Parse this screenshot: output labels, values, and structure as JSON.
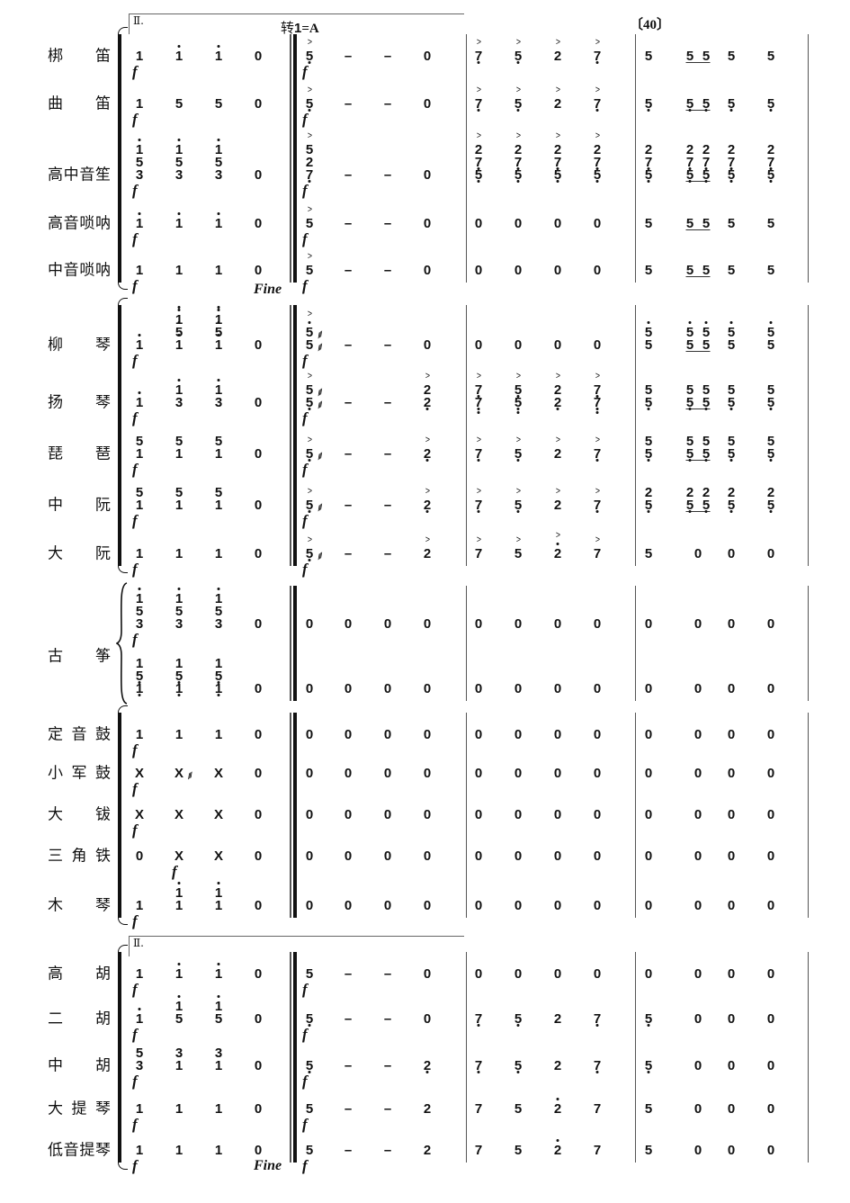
{
  "score": {
    "volta_label": "Ⅱ.",
    "key_change": {
      "prefix": "转",
      "do": "1",
      "equals": "=",
      "key": "A"
    },
    "rehearsal_mark": "〔40〕",
    "fine": "Fine",
    "notation_legend": {
      "'": "high octave dot",
      ",": "low octave dot",
      ">": "accent",
      "~": "tremolo",
      "/": "chord (top to bottom)",
      " ": "underlined eighth-note pair",
      "-": "extension dash"
    },
    "groups": [
      {
        "bracket": "bracket",
        "staves": [
          {
            "label": "梆 笛",
            "measures": [
              [
                "1",
                "1'",
                "1'",
                "0"
              ],
              [
                ">5,",
                "-",
                "-",
                "0"
              ],
              [
                ">7,",
                ">5,",
                ">2",
                ">7,"
              ],
              [
                "5",
                "5 5",
                "5",
                "5"
              ]
            ],
            "dynamics": [
              {
                "mark": "f",
                "measure": 1,
                "beat": 1
              },
              {
                "mark": "f",
                "measure": 2,
                "beat": 1
              }
            ]
          },
          {
            "label": "曲 笛",
            "measures": [
              [
                "1",
                "5",
                "5",
                "0"
              ],
              [
                ">5,",
                "-",
                "-",
                "0"
              ],
              [
                ">7,",
                ">5,",
                ">2",
                ">7,"
              ],
              [
                "5,",
                "5, 5,",
                "5,",
                "5,"
              ]
            ],
            "dynamics": [
              {
                "mark": "f",
                "measure": 1,
                "beat": 1
              },
              {
                "mark": "f",
                "measure": 2,
                "beat": 1
              }
            ]
          },
          {
            "label": "高中音笙",
            "measures": [
              [
                "1'/5/3",
                "1'/5/3",
                "1'/5/3",
                "0"
              ],
              [
                ">5/2/7,",
                "-",
                "-",
                "0"
              ],
              [
                ">2/7,/5,",
                ">2/7,/5,",
                ">2/7,/5,",
                ">2/7,/5,"
              ],
              [
                "2/7,/5,",
                "2/7,/5, 2/7,/5,",
                "2/7,/5,",
                "2/7,/5,"
              ]
            ],
            "dynamics": [
              {
                "mark": "f",
                "measure": 1,
                "beat": 1
              },
              {
                "mark": "f",
                "measure": 2,
                "beat": 1
              }
            ]
          },
          {
            "label": "高音唢呐",
            "measures": [
              [
                "1'",
                "1'",
                "1'",
                "0"
              ],
              [
                ">5",
                "-",
                "-",
                "0"
              ],
              [
                "0",
                "0",
                "0",
                "0"
              ],
              [
                "5",
                "5 5",
                "5",
                "5"
              ]
            ],
            "dynamics": [
              {
                "mark": "f",
                "measure": 1,
                "beat": 1
              },
              {
                "mark": "f",
                "measure": 2,
                "beat": 1
              }
            ]
          },
          {
            "label": "中音唢呐",
            "measures": [
              [
                "1",
                "1",
                "1",
                "0"
              ],
              [
                ">5",
                "-",
                "-",
                "0"
              ],
              [
                "0",
                "0",
                "0",
                "0"
              ],
              [
                "5",
                "5 5",
                "5",
                "5"
              ]
            ],
            "dynamics": [
              {
                "mark": "f",
                "measure": 1,
                "beat": 1
              },
              {
                "mark": "f",
                "measure": 2,
                "beat": 1
              }
            ]
          }
        ]
      },
      {
        "bracket": "bracket",
        "staves": [
          {
            "label": "柳 琴",
            "measures": [
              [
                "1'",
                "1''/5'/1'",
                "1''/5'/1'",
                "0"
              ],
              [
                ">5'~/5~",
                "-",
                "-",
                "0"
              ],
              [
                "0",
                "0",
                "0",
                "0"
              ],
              [
                "5'/5",
                "5'/5 5'/5",
                "5'/5",
                "5'/5"
              ]
            ],
            "dynamics": [
              {
                "mark": "f",
                "measure": 1,
                "beat": 1
              },
              {
                "mark": "f",
                "measure": 2,
                "beat": 1
              }
            ]
          },
          {
            "label": "扬 琴",
            "measures": [
              [
                "1'",
                "1'/3",
                "1'/3",
                "0"
              ],
              [
                ">5~/5,~",
                "-",
                "-",
                ">2/2,"
              ],
              [
                ">7,/7,,",
                ">5,/5,,",
                ">2/2,",
                ">7,/7,,"
              ],
              [
                "5/5,",
                "5/5, 5/5,",
                "5/5,",
                "5/5,"
              ]
            ],
            "dynamics": [
              {
                "mark": "f",
                "measure": 1,
                "beat": 1
              },
              {
                "mark": "f",
                "measure": 2,
                "beat": 1
              }
            ]
          },
          {
            "label": "琵 琶",
            "measures": [
              [
                "5/1",
                "5/1",
                "5/1",
                "0"
              ],
              [
                ">5,~",
                "-",
                "-",
                ">2,"
              ],
              [
                ">7,",
                ">5,",
                ">2",
                ">7,"
              ],
              [
                "5/5,",
                "5/5, 5/5,",
                "5/5,",
                "5/5,"
              ]
            ],
            "dynamics": [
              {
                "mark": "f",
                "measure": 1,
                "beat": 1
              },
              {
                "mark": "f",
                "measure": 2,
                "beat": 1
              }
            ]
          },
          {
            "label": "中 阮",
            "measures": [
              [
                "5/1",
                "5/1",
                "5/1",
                "0"
              ],
              [
                ">5,~",
                "-",
                "-",
                ">2,"
              ],
              [
                ">7,",
                ">5,",
                ">2",
                ">7,"
              ],
              [
                "2/5,",
                "2/5, 2/5,",
                "2/5,",
                "2/5,"
              ]
            ],
            "dynamics": [
              {
                "mark": "f",
                "measure": 1,
                "beat": 1
              },
              {
                "mark": "f",
                "measure": 2,
                "beat": 1
              }
            ]
          },
          {
            "label": "大 阮",
            "measures": [
              [
                "1",
                "1",
                "1",
                "0"
              ],
              [
                ">5,~",
                "-",
                "-",
                ">2"
              ],
              [
                ">7",
                ">5",
                ">2'",
                ">7"
              ],
              [
                "5",
                "0",
                "0",
                "0"
              ]
            ],
            "dynamics": [
              {
                "mark": "f",
                "measure": 1,
                "beat": 1
              },
              {
                "mark": "f",
                "measure": 2,
                "beat": 1
              }
            ]
          }
        ]
      },
      {
        "bracket": "brace",
        "label": "古 筝",
        "staves": [
          {
            "label": "",
            "measures": [
              [
                "1'/5/3",
                "1'/5/3",
                "1'/5/3",
                "0"
              ],
              [
                "0",
                "0",
                "0",
                "0"
              ],
              [
                "0",
                "0",
                "0",
                "0"
              ],
              [
                "0",
                "0",
                "0",
                "0"
              ]
            ],
            "dynamics": [
              {
                "mark": "f",
                "measure": 1,
                "beat": 1
              }
            ]
          },
          {
            "label": "",
            "measures": [
              [
                "1/5,/1,",
                "1/5,/1,",
                "1/5,/1,",
                "0"
              ],
              [
                "0",
                "0",
                "0",
                "0"
              ],
              [
                "0",
                "0",
                "0",
                "0"
              ],
              [
                "0",
                "0",
                "0",
                "0"
              ]
            ],
            "dynamics": []
          }
        ]
      },
      {
        "bracket": "bracket",
        "staves": [
          {
            "label": "定 音 鼓",
            "measures": [
              [
                "1",
                "1",
                "1",
                "0"
              ],
              [
                "0",
                "0",
                "0",
                "0"
              ],
              [
                "0",
                "0",
                "0",
                "0"
              ],
              [
                "0",
                "0",
                "0",
                "0"
              ]
            ],
            "dynamics": [
              {
                "mark": "f",
                "measure": 1,
                "beat": 1
              }
            ]
          },
          {
            "label": "小 军 鼓",
            "measures": [
              [
                "X",
                "X~",
                "X",
                "0"
              ],
              [
                "0",
                "0",
                "0",
                "0"
              ],
              [
                "0",
                "0",
                "0",
                "0"
              ],
              [
                "0",
                "0",
                "0",
                "0"
              ]
            ],
            "dynamics": [
              {
                "mark": "f",
                "measure": 1,
                "beat": 1
              }
            ]
          },
          {
            "label": "大 钹",
            "measures": [
              [
                "X",
                "X",
                "X",
                "0"
              ],
              [
                "0",
                "0",
                "0",
                "0"
              ],
              [
                "0",
                "0",
                "0",
                "0"
              ],
              [
                "0",
                "0",
                "0",
                "0"
              ]
            ],
            "dynamics": [
              {
                "mark": "f",
                "measure": 1,
                "beat": 1
              }
            ]
          },
          {
            "label": "三 角 铁",
            "measures": [
              [
                "0",
                "X",
                "X",
                "0"
              ],
              [
                "0",
                "0",
                "0",
                "0"
              ],
              [
                "0",
                "0",
                "0",
                "0"
              ],
              [
                "0",
                "0",
                "0",
                "0"
              ]
            ],
            "dynamics": [
              {
                "mark": "f",
                "measure": 1,
                "beat": 2
              }
            ]
          },
          {
            "label": "木 琴",
            "measures": [
              [
                "1",
                "1'/1",
                "1'/1",
                "0"
              ],
              [
                "0",
                "0",
                "0",
                "0"
              ],
              [
                "0",
                "0",
                "0",
                "0"
              ],
              [
                "0",
                "0",
                "0",
                "0"
              ]
            ],
            "dynamics": [
              {
                "mark": "f",
                "measure": 1,
                "beat": 1
              }
            ]
          }
        ]
      },
      {
        "bracket": "bracket",
        "staves": [
          {
            "label": "高 胡",
            "measures": [
              [
                "1",
                "1'",
                "1'",
                "0"
              ],
              [
                "5",
                "-",
                "-",
                "0"
              ],
              [
                "0",
                "0",
                "0",
                "0"
              ],
              [
                "0",
                "0",
                "0",
                "0"
              ]
            ],
            "dynamics": [
              {
                "mark": "f",
                "measure": 1,
                "beat": 1
              },
              {
                "mark": "f",
                "measure": 2,
                "beat": 1
              }
            ]
          },
          {
            "label": "二 胡",
            "measures": [
              [
                "1'",
                "1'/5",
                "1'/5",
                "0"
              ],
              [
                "5,",
                "-",
                "-",
                "0"
              ],
              [
                "7,",
                "5,",
                "2",
                "7,"
              ],
              [
                "5,",
                "0",
                "0",
                "0"
              ]
            ],
            "dynamics": [
              {
                "mark": "f",
                "measure": 1,
                "beat": 1
              },
              {
                "mark": "f",
                "measure": 2,
                "beat": 1
              }
            ]
          },
          {
            "label": "中 胡",
            "measures": [
              [
                "5/3",
                "3/1",
                "3/1",
                "0"
              ],
              [
                "5,",
                "-",
                "-",
                "2,"
              ],
              [
                "7,",
                "5,",
                "2",
                "7,"
              ],
              [
                "5,",
                "0",
                "0",
                "0"
              ]
            ],
            "dynamics": [
              {
                "mark": "f",
                "measure": 1,
                "beat": 1
              },
              {
                "mark": "f",
                "measure": 2,
                "beat": 1
              }
            ]
          },
          {
            "label": "大 提 琴",
            "measures": [
              [
                "1",
                "1",
                "1",
                "0"
              ],
              [
                "5",
                "-",
                "-",
                "2"
              ],
              [
                "7",
                "5",
                "2'",
                "7"
              ],
              [
                "5",
                "0",
                "0",
                "0"
              ]
            ],
            "dynamics": [
              {
                "mark": "f",
                "measure": 1,
                "beat": 1
              },
              {
                "mark": "f",
                "measure": 2,
                "beat": 1
              }
            ]
          },
          {
            "label": "低音提琴",
            "measures": [
              [
                "1",
                "1",
                "1",
                "0"
              ],
              [
                "5",
                "-",
                "-",
                "2"
              ],
              [
                "7",
                "5",
                "2'",
                "7"
              ],
              [
                "5",
                "0",
                "0",
                "0"
              ]
            ],
            "dynamics": [
              {
                "mark": "f",
                "measure": 1,
                "beat": 1
              },
              {
                "mark": "f",
                "measure": 2,
                "beat": 1
              }
            ]
          }
        ]
      }
    ]
  }
}
